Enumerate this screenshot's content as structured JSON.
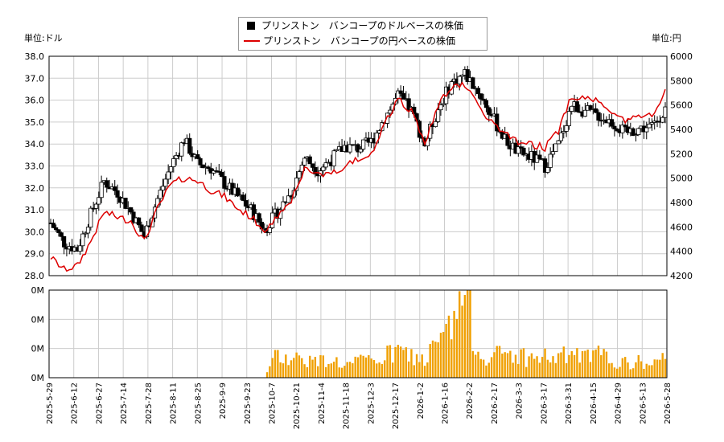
{
  "chart_data": {
    "type": "candlestick-with-line-and-volume",
    "legend": [
      {
        "label": "プリンストン　バンコープのドルベースの株価",
        "color": "#000000",
        "marker": "box"
      },
      {
        "label": "プリンストン　バンコープの円ベースの株価",
        "color": "#dd0000",
        "marker": "line"
      }
    ],
    "left_unit": "単位:ドル",
    "right_unit": "単位:円",
    "y_left": {
      "min": 28.0,
      "max": 38.0,
      "ticks": [
        "38.0",
        "37.0",
        "36.0",
        "35.0",
        "34.0",
        "33.0",
        "32.0",
        "31.0",
        "30.0",
        "29.0",
        "28.0"
      ]
    },
    "y_right": {
      "min": 4200,
      "max": 6000,
      "ticks": [
        "6000",
        "5800",
        "5600",
        "5400",
        "5200",
        "5000",
        "4800",
        "4600",
        "4400",
        "4200"
      ]
    },
    "volume_axis_ticks": [
      "0M",
      "0M",
      "0M",
      "0M"
    ],
    "x_ticks": [
      "2025-5-29",
      "2025-6-12",
      "2025-6-27",
      "2025-7-14",
      "2025-7-28",
      "2025-8-11",
      "2025-8-25",
      "2025-9-9",
      "2025-9-23",
      "2025-10-7",
      "2025-10-21",
      "2025-11-4",
      "2025-11-18",
      "2025-12-3",
      "2025-12-17",
      "2026-1-2",
      "2026-1-16",
      "2026-2-2",
      "2026-2-17",
      "2026-3-3",
      "2026-3-17",
      "2026-3-31",
      "2026-4-15",
      "2026-4-29",
      "2026-5-13",
      "2026-5-28"
    ],
    "usd_weekly_close": [
      30.4,
      29.5,
      29.2,
      30.8,
      32.3,
      31.8,
      30.9,
      29.8,
      31.5,
      33.0,
      34.2,
      33.1,
      32.9,
      32.2,
      31.6,
      31.0,
      30.1,
      30.9,
      31.8,
      33.4,
      32.8,
      33.3,
      33.9,
      33.8,
      34.1,
      35.2,
      36.2,
      35.5,
      34.0,
      35.6,
      36.8,
      37.2,
      36.4,
      35.3,
      34.2,
      33.6,
      33.4,
      33.0,
      34.0,
      35.8,
      35.5,
      35.3,
      35.0,
      34.5,
      34.7,
      34.8,
      35.6
    ],
    "jpy_weekly": [
      4350,
      4250,
      4280,
      4480,
      4720,
      4680,
      4650,
      4480,
      4750,
      4950,
      5000,
      4980,
      4900,
      4850,
      4750,
      4680,
      4580,
      4700,
      4820,
      5080,
      5020,
      5050,
      5100,
      5150,
      5200,
      5450,
      5650,
      5550,
      5300,
      5600,
      5750,
      5760,
      5600,
      5450,
      5380,
      5300,
      5280,
      5250,
      5380,
      5680,
      5650,
      5640,
      5560,
      5470,
      5500,
      5520,
      5720
    ],
    "volume_relative": [
      0,
      0,
      0,
      0,
      0,
      0,
      0,
      0,
      0,
      0,
      0,
      0,
      0,
      0,
      0,
      0,
      0,
      0.28,
      0.24,
      0.22,
      0.18,
      0.22,
      0.14,
      0.18,
      0.2,
      0.24,
      0.3,
      0.25,
      0.2,
      0.4,
      0.55,
      1.0,
      0.3,
      0.24,
      0.28,
      0.26,
      0.22,
      0.24,
      0.22,
      0.28,
      0.22,
      0.26,
      0.2,
      0.16,
      0.18,
      0.15,
      0.2
    ]
  }
}
